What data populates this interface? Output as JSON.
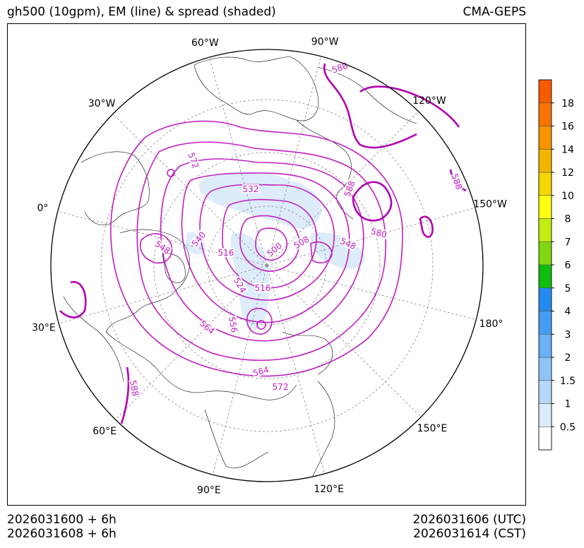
{
  "header": {
    "title": "gh500 (10gpm), EM (line) & spread (shaded)",
    "model": "CMA-GEPS"
  },
  "footer": {
    "init_utc": "2026031600 + 6h",
    "init_cst": "2026031608 + 6h",
    "valid_utc": "2026031606 (UTC)",
    "valid_cst": "2026031614 (CST)"
  },
  "map": {
    "projection": "north-polar-stereographic",
    "longitude_labels": [
      {
        "name": "lon-60w",
        "text": "60°W",
        "lon": -60
      },
      {
        "name": "lon-90w",
        "text": "90°W",
        "lon": -90
      },
      {
        "name": "lon-30w",
        "text": "30°W",
        "lon": -30
      },
      {
        "name": "lon-120w",
        "text": "120°W",
        "lon": -120
      },
      {
        "name": "lon-0",
        "text": "0°",
        "lon": 0
      },
      {
        "name": "lon-150w",
        "text": "150°W",
        "lon": -150
      },
      {
        "name": "lon-30e",
        "text": "30°E",
        "lon": 30
      },
      {
        "name": "lon-180",
        "text": "180°",
        "lon": 180
      },
      {
        "name": "lon-60e",
        "text": "60°E",
        "lon": 60
      },
      {
        "name": "lon-150e",
        "text": "150°E",
        "lon": 150
      },
      {
        "name": "lon-90e",
        "text": "90°E",
        "lon": 90
      },
      {
        "name": "lon-120e",
        "text": "120°E",
        "lon": 120
      }
    ],
    "contour_color": "#c020c0",
    "highlight_contour_color": "#b000b0"
  },
  "chart_data": {
    "type": "contour",
    "variable": "gh500",
    "units": "10gpm",
    "contour_labels": [
      "588",
      "572",
      "532",
      "588",
      "580",
      "548",
      "540",
      "548",
      "516",
      "508",
      "500",
      "524",
      "516",
      "556",
      "564",
      "564",
      "572",
      "588",
      "588"
    ],
    "contour_levels": [
      500,
      508,
      516,
      524,
      532,
      540,
      548,
      556,
      564,
      572,
      580,
      588
    ],
    "colorbar": {
      "levels": [
        "0.5",
        "1",
        "1.5",
        "2",
        "3",
        "4",
        "5",
        "6",
        "7",
        "8",
        "10",
        "12",
        "14",
        "16",
        "18"
      ],
      "colors": [
        "#ffffff",
        "#dcebfb",
        "#b6d8fa",
        "#8fc4f8",
        "#6ab1f6",
        "#469ef3",
        "#238bf0",
        "#0fbe0f",
        "#80d810",
        "#c4ec10",
        "#ffff10",
        "#f5d600",
        "#f5b400",
        "#f79400",
        "#f87400",
        "#f85a00"
      ]
    }
  }
}
